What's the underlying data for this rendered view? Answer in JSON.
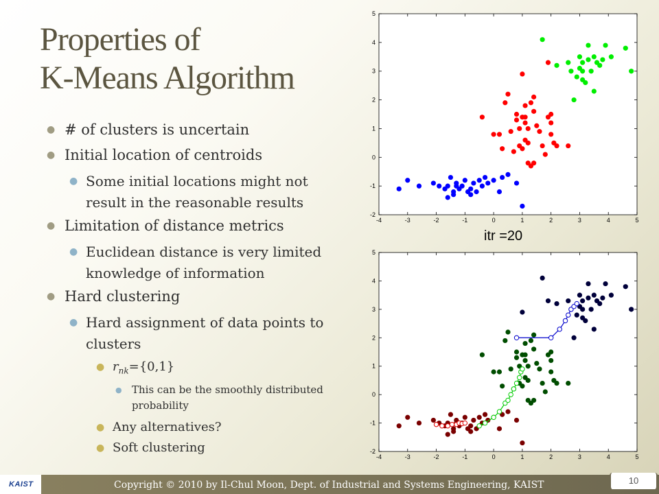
{
  "slide": {
    "title_line1": "Properties of",
    "title_line2": "K-Means Algorithm",
    "bullets": {
      "b1": "# of clusters is uncertain",
      "b2": "Initial location of centroids",
      "b2_1": "Some initial locations might not result in the reasonable results",
      "b3": "Limitation of distance metrics",
      "b3_1": "Euclidean distance is very limited knowledge of information",
      "b4": "Hard clustering",
      "b4_1": "Hard assignment of data points to clusters",
      "b4_1_1_var": "r",
      "b4_1_1_sub": "nk",
      "b4_1_1_rest": "={0,1}",
      "b4_1_1_1": "This can be the smoothly distributed probability",
      "b4_1_2": "Any alternatives?",
      "b4_1_3": "Soft clustering"
    },
    "iteration_label": "itr =20",
    "footer": {
      "logo": "KAIST",
      "copyright": "Copyright © 2010 by Il-Chul Moon, Dept. of Industrial and Systems Engineering, KAIST",
      "page_number": "10"
    }
  },
  "chart_data": [
    {
      "type": "scatter",
      "title": "",
      "xlim": [
        -4,
        5
      ],
      "ylim": [
        -2,
        5
      ],
      "xticks": [
        "-4",
        "-3",
        "-2",
        "-1",
        "0",
        "1",
        "2",
        "3",
        "4",
        "5"
      ],
      "yticks": [
        "-2",
        "-1",
        "0",
        "1",
        "2",
        "3",
        "4",
        "5"
      ],
      "series": [
        {
          "name": "cluster-blue",
          "color": "#0000ff",
          "points": [
            [
              -3.3,
              -1.1
            ],
            [
              -3.0,
              -0.8
            ],
            [
              -2.6,
              -1.0
            ],
            [
              -2.1,
              -0.9
            ],
            [
              -1.9,
              -1.0
            ],
            [
              -1.7,
              -1.1
            ],
            [
              -1.6,
              -1.0
            ],
            [
              -1.5,
              -0.7
            ],
            [
              -1.4,
              -1.2
            ],
            [
              -1.4,
              -1.3
            ],
            [
              -1.3,
              -0.9
            ],
            [
              -1.2,
              -1.1
            ],
            [
              -1.1,
              -1.0
            ],
            [
              -1.0,
              -0.8
            ],
            [
              -0.9,
              -1.2
            ],
            [
              -0.8,
              -1.1
            ],
            [
              -0.7,
              -0.9
            ],
            [
              -0.6,
              -1.2
            ],
            [
              -0.5,
              -0.8
            ],
            [
              -0.4,
              -1.0
            ],
            [
              -0.3,
              -0.7
            ],
            [
              -0.2,
              -0.9
            ],
            [
              0.0,
              -0.8
            ],
            [
              0.2,
              -1.2
            ],
            [
              0.3,
              -0.7
            ],
            [
              0.5,
              -0.6
            ],
            [
              0.8,
              -0.9
            ],
            [
              1.0,
              -1.7
            ],
            [
              -1.6,
              -1.4
            ],
            [
              -1.3,
              -1.0
            ],
            [
              -0.8,
              -1.3
            ]
          ]
        },
        {
          "name": "cluster-red",
          "color": "#ff0000",
          "points": [
            [
              -0.4,
              1.4
            ],
            [
              0.0,
              0.8
            ],
            [
              0.2,
              0.8
            ],
            [
              0.3,
              0.3
            ],
            [
              0.4,
              1.9
            ],
            [
              0.5,
              2.2
            ],
            [
              0.6,
              0.9
            ],
            [
              0.7,
              0.2
            ],
            [
              0.8,
              1.3
            ],
            [
              0.8,
              1.5
            ],
            [
              0.9,
              1.0
            ],
            [
              1.0,
              0.3
            ],
            [
              1.0,
              1.4
            ],
            [
              1.0,
              2.9
            ],
            [
              1.1,
              0.6
            ],
            [
              1.1,
              1.4
            ],
            [
              1.1,
              1.8
            ],
            [
              1.2,
              -0.2
            ],
            [
              1.2,
              0.5
            ],
            [
              1.2,
              1.0
            ],
            [
              1.3,
              -0.3
            ],
            [
              1.3,
              1.9
            ],
            [
              1.4,
              2.1
            ],
            [
              1.4,
              -0.2
            ],
            [
              1.5,
              1.1
            ],
            [
              1.6,
              0.9
            ],
            [
              1.7,
              0.4
            ],
            [
              1.8,
              0.1
            ],
            [
              1.9,
              1.4
            ],
            [
              2.0,
              0.8
            ],
            [
              2.0,
              1.2
            ],
            [
              2.0,
              1.5
            ],
            [
              2.1,
              0.5
            ],
            [
              2.2,
              0.4
            ],
            [
              2.6,
              0.4
            ],
            [
              1.9,
              3.3
            ],
            [
              1.1,
              1.2
            ],
            [
              0.9,
              0.4
            ],
            [
              1.4,
              1.6
            ]
          ]
        },
        {
          "name": "cluster-green",
          "color": "#00ee00",
          "points": [
            [
              1.7,
              4.1
            ],
            [
              2.2,
              3.2
            ],
            [
              2.6,
              3.3
            ],
            [
              2.7,
              3.0
            ],
            [
              2.8,
              2.0
            ],
            [
              2.9,
              2.8
            ],
            [
              3.0,
              3.5
            ],
            [
              3.0,
              3.1
            ],
            [
              3.1,
              2.7
            ],
            [
              3.1,
              3.0
            ],
            [
              3.2,
              2.6
            ],
            [
              3.3,
              3.4
            ],
            [
              3.3,
              3.9
            ],
            [
              3.4,
              3.0
            ],
            [
              3.5,
              3.5
            ],
            [
              3.5,
              2.3
            ],
            [
              3.6,
              3.3
            ],
            [
              3.7,
              3.2
            ],
            [
              3.8,
              3.4
            ],
            [
              3.9,
              3.9
            ],
            [
              4.1,
              3.5
            ],
            [
              4.6,
              3.8
            ],
            [
              4.8,
              3.0
            ],
            [
              3.1,
              3.3
            ]
          ]
        }
      ]
    },
    {
      "type": "scatter",
      "title": "",
      "xlim": [
        -4,
        5
      ],
      "ylim": [
        -2,
        5
      ],
      "xticks": [
        "-4",
        "-3",
        "-2",
        "-1",
        "0",
        "1",
        "2",
        "3",
        "4",
        "5"
      ],
      "yticks": [
        "-2",
        "-1",
        "0",
        "1",
        "2",
        "3",
        "4",
        "5"
      ],
      "series": [
        {
          "name": "cluster-dark-red",
          "color": "#7a0000",
          "points": [
            [
              -3.3,
              -1.1
            ],
            [
              -3.0,
              -0.8
            ],
            [
              -2.6,
              -1.0
            ],
            [
              -2.1,
              -0.9
            ],
            [
              -1.9,
              -1.0
            ],
            [
              -1.7,
              -1.1
            ],
            [
              -1.6,
              -1.0
            ],
            [
              -1.5,
              -0.7
            ],
            [
              -1.4,
              -1.2
            ],
            [
              -1.4,
              -1.3
            ],
            [
              -1.3,
              -0.9
            ],
            [
              -1.2,
              -1.1
            ],
            [
              -1.1,
              -1.0
            ],
            [
              -1.0,
              -0.8
            ],
            [
              -0.9,
              -1.2
            ],
            [
              -0.8,
              -1.1
            ],
            [
              -0.7,
              -0.9
            ],
            [
              -0.6,
              -1.2
            ],
            [
              -0.5,
              -0.8
            ],
            [
              -0.4,
              -1.0
            ],
            [
              -0.3,
              -0.7
            ],
            [
              -0.2,
              -0.9
            ],
            [
              0.0,
              -0.8
            ],
            [
              0.2,
              -1.2
            ],
            [
              0.3,
              -0.7
            ],
            [
              0.5,
              -0.6
            ],
            [
              0.8,
              -0.9
            ],
            [
              1.0,
              -1.7
            ],
            [
              -1.6,
              -1.4
            ],
            [
              -1.3,
              -1.0
            ],
            [
              -0.8,
              -1.3
            ]
          ]
        },
        {
          "name": "cluster-dark-green",
          "color": "#004d00",
          "points": [
            [
              -0.4,
              1.4
            ],
            [
              0.0,
              0.8
            ],
            [
              0.2,
              0.8
            ],
            [
              0.3,
              0.3
            ],
            [
              0.4,
              1.9
            ],
            [
              0.5,
              2.2
            ],
            [
              0.6,
              0.9
            ],
            [
              0.7,
              0.2
            ],
            [
              0.8,
              1.3
            ],
            [
              0.8,
              1.5
            ],
            [
              0.9,
              1.0
            ],
            [
              1.0,
              0.3
            ],
            [
              1.0,
              1.4
            ],
            [
              1.1,
              0.6
            ],
            [
              1.1,
              1.4
            ],
            [
              1.1,
              1.8
            ],
            [
              1.2,
              -0.2
            ],
            [
              1.2,
              0.5
            ],
            [
              1.2,
              1.0
            ],
            [
              1.3,
              -0.3
            ],
            [
              1.3,
              1.9
            ],
            [
              1.4,
              2.1
            ],
            [
              1.4,
              -0.2
            ],
            [
              1.5,
              1.1
            ],
            [
              1.6,
              0.9
            ],
            [
              1.7,
              0.4
            ],
            [
              1.8,
              0.1
            ],
            [
              1.9,
              1.4
            ],
            [
              2.0,
              0.8
            ],
            [
              2.0,
              1.2
            ],
            [
              2.0,
              1.5
            ],
            [
              2.1,
              0.5
            ],
            [
              2.2,
              0.4
            ],
            [
              2.6,
              0.4
            ],
            [
              1.1,
              1.2
            ],
            [
              0.9,
              0.4
            ],
            [
              1.4,
              1.6
            ]
          ]
        },
        {
          "name": "cluster-dark-blue",
          "color": "#00003a",
          "points": [
            [
              1.7,
              4.1
            ],
            [
              2.2,
              3.2
            ],
            [
              2.6,
              3.3
            ],
            [
              2.7,
              3.0
            ],
            [
              2.8,
              2.0
            ],
            [
              2.9,
              2.8
            ],
            [
              3.0,
              3.5
            ],
            [
              3.0,
              3.1
            ],
            [
              3.1,
              2.7
            ],
            [
              3.1,
              3.0
            ],
            [
              3.2,
              2.6
            ],
            [
              3.3,
              3.4
            ],
            [
              3.3,
              3.9
            ],
            [
              3.4,
              3.0
            ],
            [
              3.5,
              3.5
            ],
            [
              3.5,
              2.3
            ],
            [
              3.6,
              3.3
            ],
            [
              3.7,
              3.2
            ],
            [
              3.8,
              3.4
            ],
            [
              3.9,
              3.9
            ],
            [
              4.1,
              3.5
            ],
            [
              4.6,
              3.8
            ],
            [
              4.8,
              3.0
            ],
            [
              3.1,
              3.3
            ],
            [
              1.0,
              2.9
            ],
            [
              1.9,
              3.3
            ]
          ]
        }
      ],
      "centroid_paths": [
        {
          "name": "centroid-path-red",
          "color": "#dd0000",
          "points": [
            [
              -2.0,
              -1.05
            ],
            [
              -1.8,
              -1.1
            ],
            [
              -1.6,
              -1.1
            ],
            [
              -1.45,
              -1.05
            ],
            [
              -1.3,
              -1.05
            ],
            [
              -1.2,
              -1.0
            ],
            [
              -1.1,
              -1.02
            ],
            [
              -1.0,
              -1.0
            ]
          ]
        },
        {
          "name": "centroid-path-green",
          "color": "#00cc00",
          "points": [
            [
              -0.5,
              -1.1
            ],
            [
              -0.3,
              -1.0
            ],
            [
              0.0,
              -0.8
            ],
            [
              0.2,
              -0.6
            ],
            [
              0.4,
              -0.3
            ],
            [
              0.5,
              -0.2
            ],
            [
              0.6,
              0.0
            ],
            [
              0.7,
              0.2
            ],
            [
              0.8,
              0.4
            ],
            [
              0.9,
              0.6
            ],
            [
              0.95,
              0.8
            ],
            [
              1.0,
              0.9
            ]
          ]
        },
        {
          "name": "centroid-path-blue",
          "color": "#0000cc",
          "points": [
            [
              0.8,
              2.0
            ],
            [
              2.0,
              2.0
            ],
            [
              2.3,
              2.3
            ],
            [
              2.5,
              2.6
            ],
            [
              2.6,
              2.8
            ],
            [
              2.7,
              3.0
            ],
            [
              2.8,
              3.1
            ],
            [
              2.9,
              3.2
            ]
          ]
        }
      ]
    }
  ]
}
